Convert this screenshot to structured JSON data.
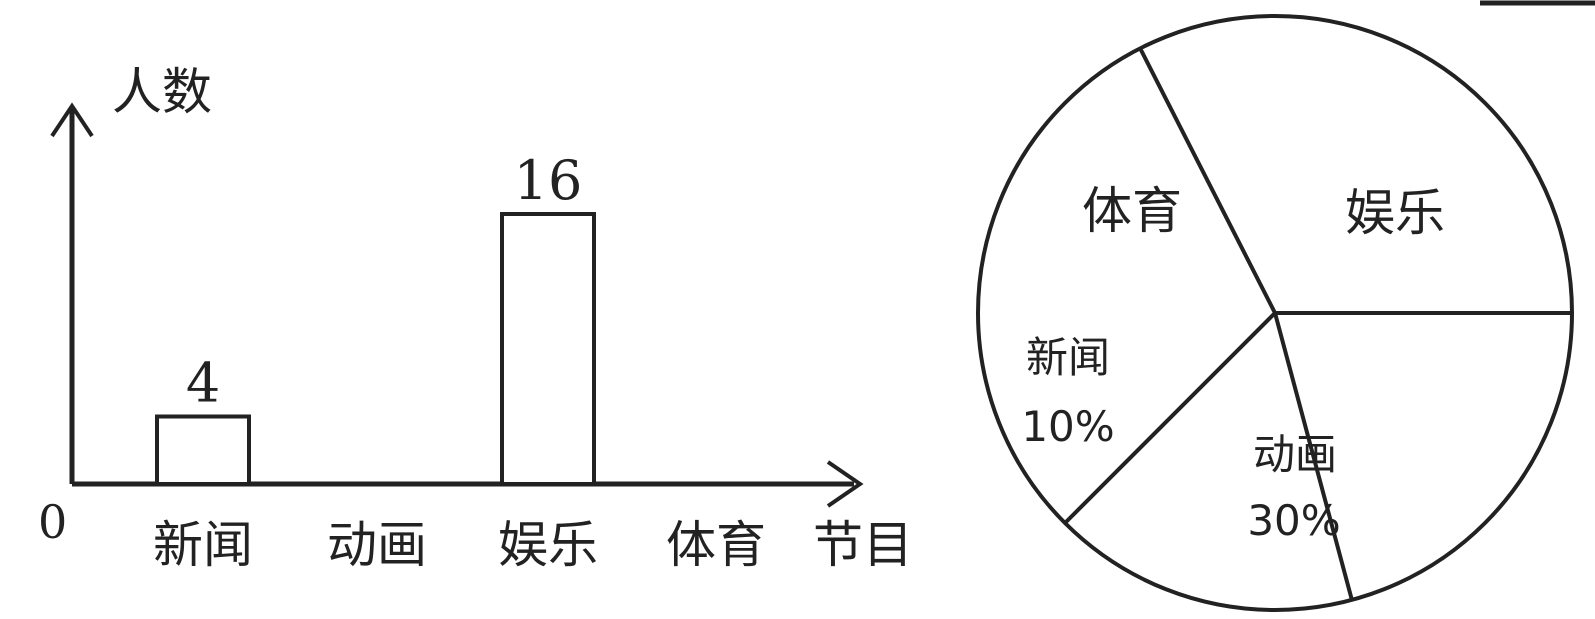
{
  "chart_data": [
    {
      "type": "bar",
      "xlabel": "节目",
      "ylabel": "人数",
      "origin_label": "0",
      "categories": [
        "新闻",
        "动画",
        "娱乐",
        "体育"
      ],
      "values": [
        4,
        null,
        16,
        null
      ],
      "value_labels": [
        "4",
        "",
        "16",
        ""
      ],
      "ylim": [
        0,
        20
      ],
      "grid": false,
      "bar_fill": "#ffffff",
      "stroke_color": "#222222"
    },
    {
      "type": "pie",
      "slices": [
        {
          "label": "体育",
          "percent": null,
          "percent_label": ""
        },
        {
          "label": "娱乐",
          "percent": null,
          "percent_label": ""
        },
        {
          "label": "动画",
          "percent": 30,
          "percent_label": "30%"
        },
        {
          "label": "新闻",
          "percent": 10,
          "percent_label": "10%"
        }
      ],
      "stroke_color": "#222222",
      "fill": "#ffffff"
    }
  ]
}
